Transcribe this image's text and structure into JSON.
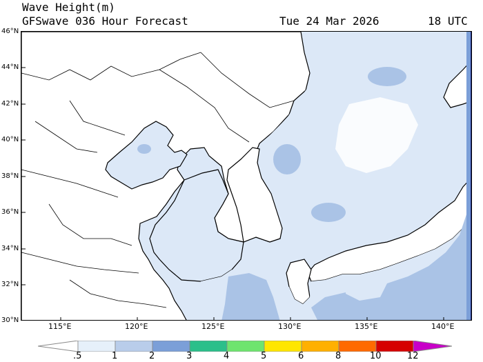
{
  "header": {
    "title": "Wave Height(m)",
    "model": "GFSwave 036 Hour Forecast",
    "date": "Tue 24 Mar 2026",
    "time": "18 UTC"
  },
  "map": {
    "lat_labels": [
      "46°N",
      "44°N",
      "42°N",
      "40°N",
      "38°N",
      "36°N",
      "34°N",
      "32°N",
      "30°N"
    ],
    "lon_labels": [
      "115°E",
      "120°E",
      "125°E",
      "130°E",
      "135°E",
      "140°E"
    ],
    "extent": {
      "lon_min": 112.5,
      "lon_max": 142.0,
      "lat_min": 30,
      "lat_max": 46
    }
  },
  "colorbar": {
    "labels": [
      ".5",
      "1",
      "2",
      "3",
      "4",
      "5",
      "6",
      "8",
      "10",
      "12"
    ],
    "colors": [
      "#e6f0fa",
      "#b9cdea",
      "#7b9fd8",
      "#2bbf8a",
      "#6ee46e",
      "#ffe600",
      "#ffb000",
      "#ff6a00",
      "#d60000",
      "#c800c8"
    ],
    "units": "m"
  },
  "colors": {
    "wave_0_5_1": "#dce8f7",
    "wave_1_2": "#aac3e6",
    "wave_2_3": "#7b9fd8",
    "land": "#ffffff",
    "coast": "#000000"
  }
}
